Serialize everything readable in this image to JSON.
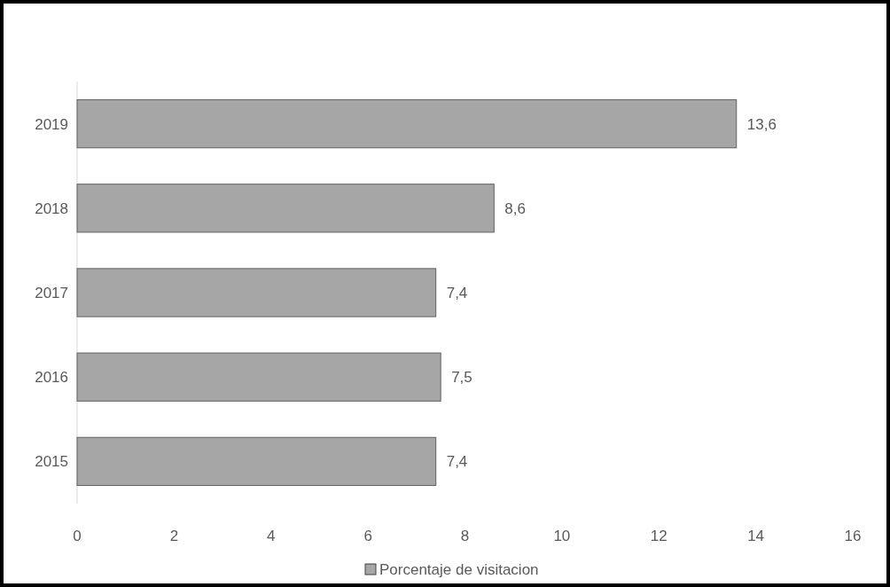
{
  "chart_data": {
    "type": "bar",
    "orientation": "horizontal",
    "categories": [
      "2019",
      "2018",
      "2017",
      "2016",
      "2015"
    ],
    "series": [
      {
        "name": "Porcentaje de visitacion",
        "color": "#a6a6a6",
        "values": [
          13.6,
          8.6,
          7.4,
          7.5,
          7.4
        ],
        "value_labels": [
          "13,6",
          "8,6",
          "7,4",
          "7,5",
          "7,4"
        ]
      }
    ],
    "xlim": [
      0,
      16
    ],
    "xticks": [
      0,
      2,
      4,
      6,
      8,
      10,
      12,
      14,
      16
    ],
    "grid": false,
    "legend": "bottom"
  }
}
